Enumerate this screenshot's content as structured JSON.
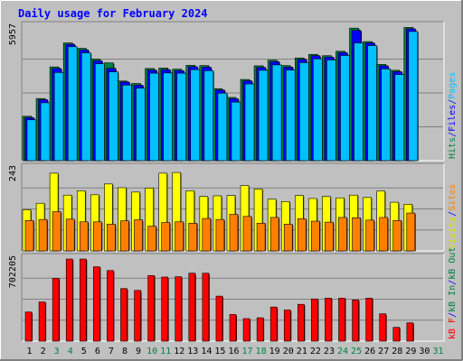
{
  "chart_data": {
    "type": "bar",
    "title": "Daily usage for February 2024",
    "days": [
      "1",
      "2",
      "3",
      "4",
      "5",
      "6",
      "7",
      "8",
      "9",
      "10",
      "11",
      "12",
      "13",
      "14",
      "15",
      "16",
      "17",
      "18",
      "19",
      "20",
      "21",
      "22",
      "23",
      "24",
      "25",
      "26",
      "27",
      "28",
      "29",
      "30",
      "31"
    ],
    "weekend_days": [
      "3",
      "4",
      "10",
      "11",
      "17",
      "18",
      "24",
      "25",
      "31"
    ],
    "panels": [
      {
        "id": "hits_files_pages",
        "max_label": "5957",
        "ymax": 5957,
        "side_legend": [
          {
            "text": "Hits",
            "color": "#008040"
          },
          {
            "text": "/",
            "color": "#0000ff"
          },
          {
            "text": "Files",
            "color": "#0000ff"
          },
          {
            "text": "/",
            "color": "#0000ff"
          },
          {
            "text": "Pages",
            "color": "#00c0ff"
          }
        ],
        "series": [
          {
            "name": "Hits",
            "color": "#008040",
            "values": [
              1980,
              2770,
              4180,
              5250,
              5010,
              4530,
              4360,
              3550,
              3440,
              4110,
              4130,
              4080,
              4250,
              4240,
              3210,
              2820,
              3620,
              4230,
              4480,
              4240,
              4580,
              4740,
              4680,
              4880,
              5910,
              5310,
              4290,
              4030,
              5940,
              0,
              0
            ]
          },
          {
            "name": "Files",
            "color": "#0000ff",
            "values": [
              1920,
              2720,
              4110,
              5190,
              4940,
              4460,
              4120,
              3510,
              3370,
              4040,
              4060,
              4020,
              4190,
              4170,
              3150,
              2760,
              3560,
              4160,
              4420,
              4170,
              4520,
              4680,
              4620,
              4820,
              5810,
              5250,
              4230,
              3970,
              5880,
              0,
              0
            ]
          },
          {
            "name": "Pages",
            "color": "#00c0ff",
            "values": [
              1820,
              2580,
              3930,
              5080,
              4810,
              4320,
              3960,
              3370,
              3230,
              3900,
              3910,
              3900,
              4060,
              4010,
              3010,
              2610,
              3420,
              4030,
              4270,
              4040,
              4370,
              4540,
              4490,
              4690,
              5250,
              5130,
              4090,
              3840,
              5760,
              0,
              0
            ]
          }
        ]
      },
      {
        "id": "visits_sites",
        "max_label": "243",
        "ymax": 243,
        "side_legend": [
          {
            "text": "Visits",
            "color": "#e0e000"
          },
          {
            "text": "/",
            "color": "#0000ff"
          },
          {
            "text": "Sites",
            "color": "#ff8000"
          }
        ],
        "series": [
          {
            "name": "Visits",
            "color": "#ffff00",
            "values": [
              122,
              141,
              230,
              165,
              178,
              166,
              198,
              187,
              174,
              186,
              230,
              232,
              178,
              161,
              163,
              164,
              193,
              183,
              153,
              146,
              164,
              155,
              161,
              157,
              165,
              158,
              177,
              144,
              138,
              0,
              0
            ]
          },
          {
            "name": "Sites",
            "color": "#ff8000",
            "values": [
              90,
              93,
              116,
              94,
              86,
              86,
              79,
              89,
              92,
              73,
              84,
              86,
              82,
              96,
              93,
              108,
              102,
              82,
              99,
              79,
              95,
              88,
              85,
              99,
              98,
              91,
              99,
              90,
              112,
              0,
              0
            ]
          }
        ]
      },
      {
        "id": "kbytes",
        "max_label": "702205",
        "ymax": 702205,
        "side_legend": [
          {
            "text": "kB F",
            "color": "#ff0000"
          },
          {
            "text": "/",
            "color": "#0000ff"
          },
          {
            "text": "kB In",
            "color": "#008040"
          },
          {
            "text": "/",
            "color": "#0000ff"
          },
          {
            "text": "kB Out",
            "color": "#008040"
          }
        ],
        "series": [
          {
            "name": "kB F",
            "color": "#ff0000",
            "values": [
              249000,
              335000,
              538000,
              702205,
              702205,
              636000,
              604000,
              450000,
              434000,
              561000,
              548000,
              551000,
              581000,
              581000,
              385000,
              228000,
              193000,
              200000,
              292000,
              266000,
              315000,
              361000,
              368000,
              368000,
              352000,
              367000,
              234000,
              118000,
              157000,
              0,
              0
            ]
          }
        ]
      }
    ]
  }
}
